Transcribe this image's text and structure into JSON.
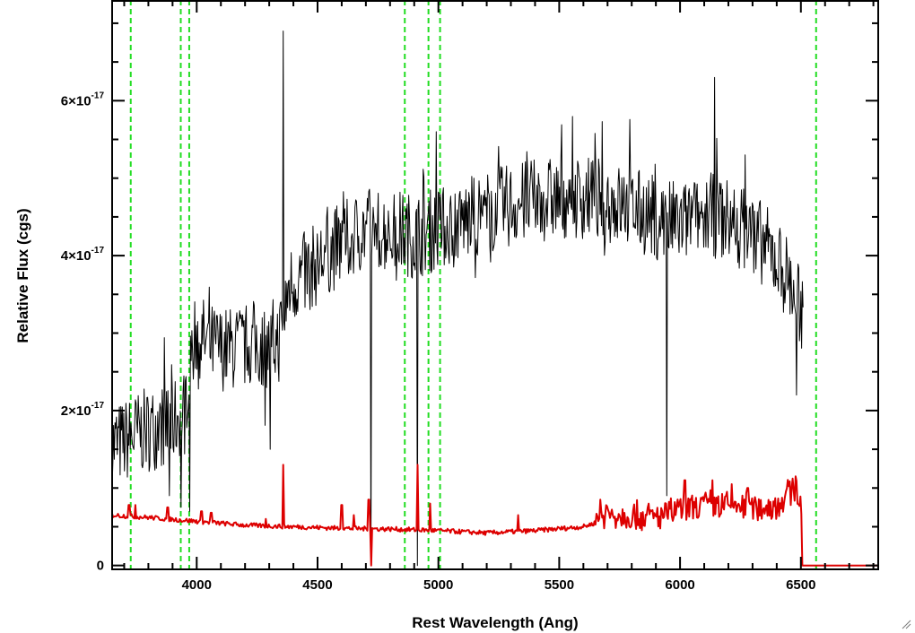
{
  "chart_data": {
    "type": "line",
    "xlabel": "Rest Wavelength (Ang)",
    "ylabel": "Relative Flux (cgs)",
    "xlim": [
      3650,
      6820
    ],
    "ylim": [
      -5e-19,
      7.3e-17
    ],
    "x_ticks": [
      {
        "value": 4000,
        "label": "4000"
      },
      {
        "value": 4500,
        "label": "4500"
      },
      {
        "value": 5000,
        "label": "5000"
      },
      {
        "value": 5500,
        "label": "5500"
      },
      {
        "value": 6000,
        "label": "6000"
      },
      {
        "value": 6500,
        "label": "6500"
      }
    ],
    "y_ticks": [
      {
        "value": 0,
        "mantissa": "0",
        "exponent": ""
      },
      {
        "value": 2e-17,
        "mantissa": "2×10",
        "exponent": "-17"
      },
      {
        "value": 4e-17,
        "mantissa": "4×10",
        "exponent": "-17"
      },
      {
        "value": 6e-17,
        "mantissa": "6×10",
        "exponent": "-17"
      }
    ],
    "x_minor_step": 100,
    "y_minor_step": 5e-18,
    "grid": false,
    "legend": "none",
    "vertical_markers": {
      "color": "#22dd22",
      "style": "dashed",
      "x": [
        3727,
        3934,
        3969,
        4861,
        4959,
        5007,
        6563
      ]
    },
    "series": [
      {
        "color": "#000000",
        "points": [
          [
            3650,
            1.55e-17
          ],
          [
            3700,
            1.6e-17
          ],
          [
            3750,
            1.7e-17
          ],
          [
            3800,
            1.75e-17
          ],
          [
            3850,
            1.8e-17
          ],
          [
            3900,
            1.85e-17
          ],
          [
            3950,
            2e-17
          ],
          [
            3975,
            2.8e-17
          ],
          [
            4000,
            3e-17
          ],
          [
            4050,
            2.85e-17
          ],
          [
            4100,
            2.8e-17
          ],
          [
            4150,
            2.8e-17
          ],
          [
            4200,
            2.85e-17
          ],
          [
            4250,
            2.85e-17
          ],
          [
            4300,
            2.8e-17
          ],
          [
            4340,
            2.9e-17
          ],
          [
            4380,
            3.6e-17
          ],
          [
            4420,
            3.7e-17
          ],
          [
            4460,
            3.8e-17
          ],
          [
            4500,
            3.9e-17
          ],
          [
            4550,
            4.05e-17
          ],
          [
            4600,
            4.15e-17
          ],
          [
            4650,
            4.25e-17
          ],
          [
            4700,
            4.35e-17
          ],
          [
            4750,
            4.35e-17
          ],
          [
            4800,
            4.3e-17
          ],
          [
            4850,
            4.3e-17
          ],
          [
            4900,
            4.25e-17
          ],
          [
            4950,
            4.3e-17
          ],
          [
            5000,
            4.35e-17
          ],
          [
            5050,
            4.4e-17
          ],
          [
            5100,
            4.45e-17
          ],
          [
            5200,
            4.55e-17
          ],
          [
            5300,
            4.65e-17
          ],
          [
            5400,
            4.7e-17
          ],
          [
            5500,
            4.75e-17
          ],
          [
            5600,
            4.75e-17
          ],
          [
            5700,
            4.7e-17
          ],
          [
            5800,
            4.6e-17
          ],
          [
            5900,
            4.5e-17
          ],
          [
            6000,
            4.4e-17
          ],
          [
            6100,
            4.55e-17
          ],
          [
            6200,
            4.45e-17
          ],
          [
            6300,
            4.3e-17
          ],
          [
            6400,
            3.95e-17
          ],
          [
            6450,
            3.7e-17
          ],
          [
            6500,
            3.3e-17
          ],
          [
            6510,
            3.2e-17
          ]
        ],
        "features": [
          [
            4358,
            6.9e-17
          ],
          [
            4722,
            0.0
          ],
          [
            4912,
            0.0
          ],
          [
            4990,
            5.6e-17
          ],
          [
            5945,
            9e-18
          ],
          [
            6270,
            5.3e-17
          ],
          [
            6142,
            6.3e-17
          ],
          [
            4305,
            1.5e-17
          ],
          [
            6483,
            2.2e-17
          ],
          [
            3888,
            9e-18
          ],
          [
            3935,
            7.5e-18
          ],
          [
            3970,
            7e-18
          ]
        ]
      },
      {
        "color": "#dd0000",
        "points": [
          [
            3650,
            6.5e-18
          ],
          [
            3800,
            6.2e-18
          ],
          [
            4000,
            5.7e-18
          ],
          [
            4200,
            5.2e-18
          ],
          [
            4400,
            5e-18
          ],
          [
            4600,
            4.8e-18
          ],
          [
            4800,
            4.7e-18
          ],
          [
            5000,
            4.5e-18
          ],
          [
            5200,
            4.2e-18
          ],
          [
            5400,
            4.5e-18
          ],
          [
            5600,
            5e-18
          ],
          [
            5700,
            6e-18
          ],
          [
            5800,
            5.8e-18
          ],
          [
            5900,
            5.5e-18
          ],
          [
            6000,
            6.5e-18
          ],
          [
            6100,
            7.2e-18
          ],
          [
            6200,
            7.2e-18
          ],
          [
            6300,
            6.7e-18
          ],
          [
            6400,
            7e-18
          ],
          [
            6480,
            9.5e-18
          ],
          [
            6505,
            6.5e-18
          ],
          [
            6506,
            0.0
          ],
          [
            6820,
            0.0
          ]
        ],
        "features": [
          [
            3720,
            7.8e-18
          ],
          [
            3745,
            7.8e-18
          ],
          [
            3880,
            7.5e-18
          ],
          [
            4020,
            7e-18
          ],
          [
            4060,
            6.8e-18
          ],
          [
            4285,
            6e-18
          ],
          [
            4358,
            1.3e-17
          ],
          [
            4600,
            7.8e-18
          ],
          [
            4650,
            6.5e-18
          ],
          [
            4722,
            0.0
          ],
          [
            4712,
            8.5e-18
          ],
          [
            4914,
            1.3e-17
          ],
          [
            4965,
            8e-18
          ],
          [
            5330,
            6.5e-18
          ],
          [
            5670,
            8.5e-18
          ],
          [
            6020,
            1.1e-17
          ],
          [
            6135,
            1.1e-17
          ],
          [
            6215,
            1.05e-17
          ],
          [
            6280,
            1e-17
          ],
          [
            6478,
            1.15e-17
          ]
        ]
      }
    ]
  }
}
